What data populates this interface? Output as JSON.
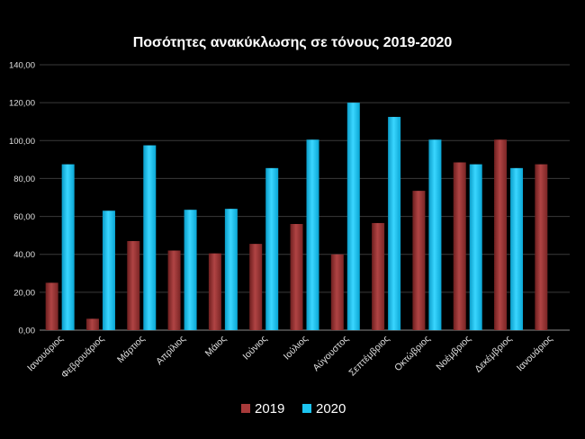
{
  "chart_data": {
    "type": "bar",
    "title": "Ποσότητες  ανακύκλωσης  σε τόνους  2019-2020",
    "xlabel": "",
    "ylabel": "",
    "categories": [
      "Ιανουάριος",
      "Φεβρουάριος",
      "Μάρτιος",
      "Απρίλιος",
      "Μάιος",
      "Ιούνιος",
      "Ιούλιος",
      "Αύγουστος",
      "Σεπτέμβριος",
      "Οκτώβριος",
      "Νοέμβριος",
      "Δεκέμβριος",
      "Ιανουάριος"
    ],
    "series": [
      {
        "name": "2019",
        "color": "#a83a3a",
        "values": [
          25,
          6,
          47,
          42,
          40.5,
          45.5,
          56,
          40,
          56.5,
          73.5,
          88.5,
          100.5,
          87.5
        ]
      },
      {
        "name": "2020",
        "color": "#1cc4f0",
        "values": [
          87.5,
          63,
          97.5,
          63.5,
          64,
          85.5,
          100.5,
          120,
          112.5,
          100.5,
          87.5,
          85.5,
          null
        ]
      }
    ],
    "ylim": [
      0,
      140
    ],
    "yticks": [
      "0,00",
      "20,00",
      "40,00",
      "60,00",
      "80,00",
      "100,00",
      "120,00",
      "140,00"
    ],
    "grid": true,
    "legend_position": "bottom-center"
  }
}
